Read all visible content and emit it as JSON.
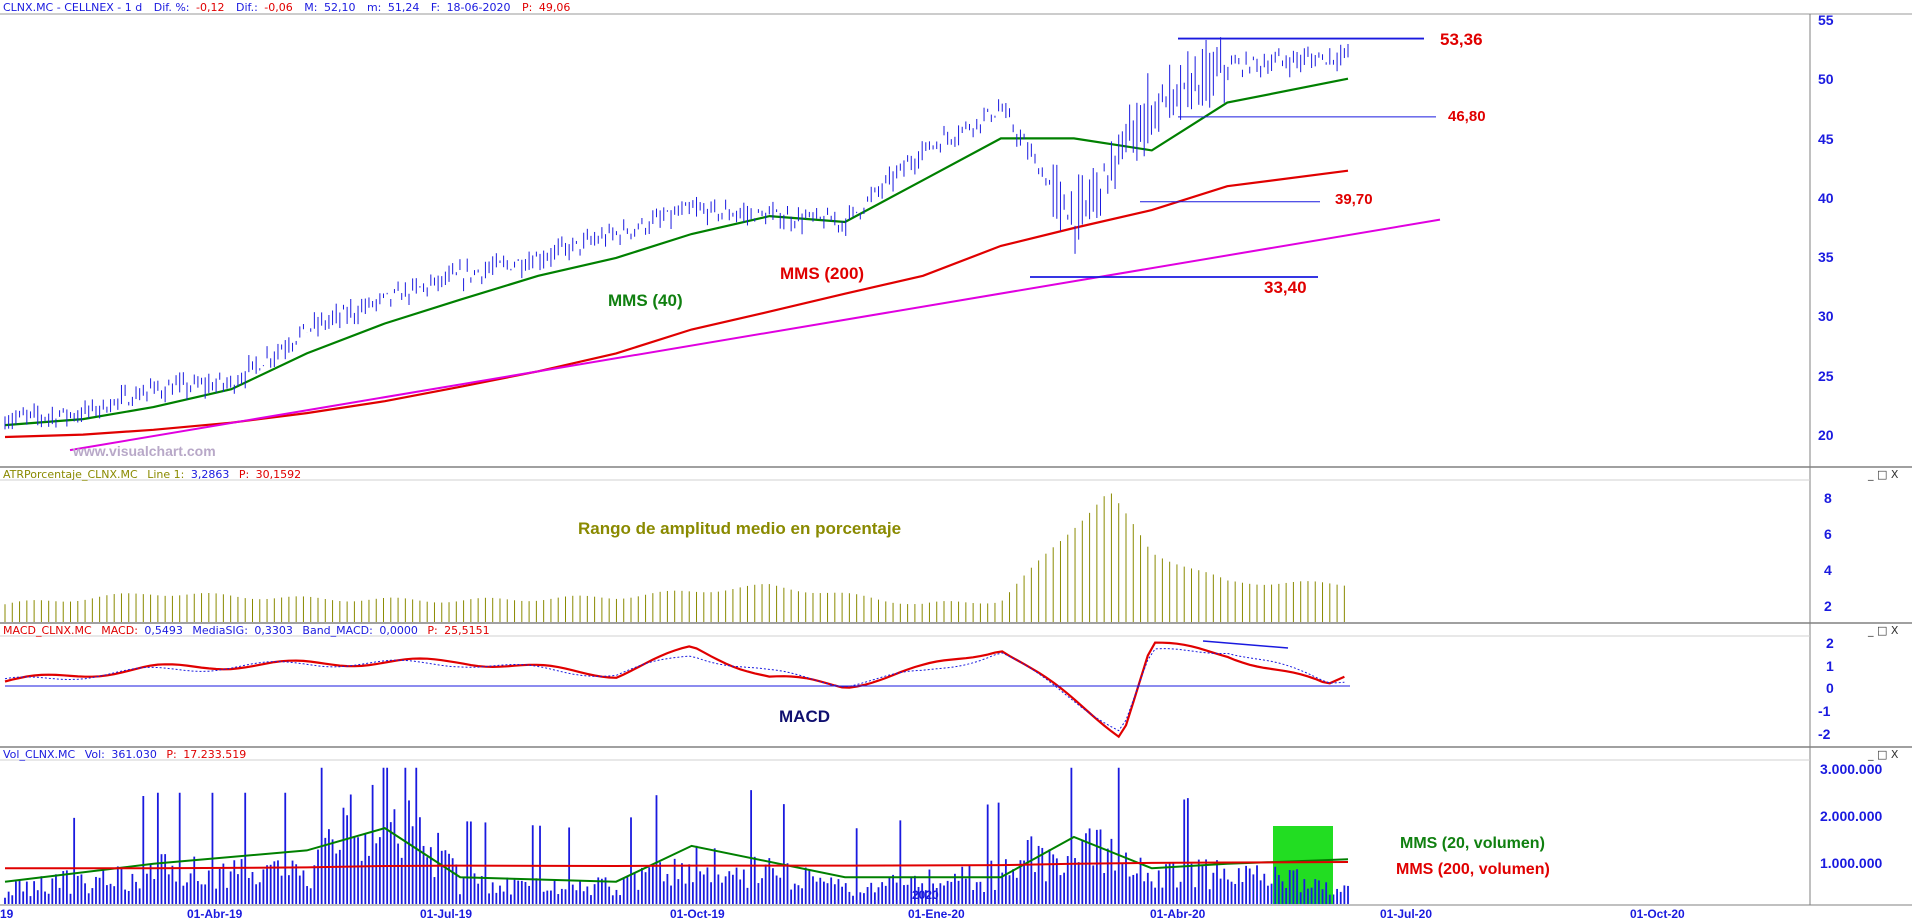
{
  "colors": {
    "price": "#1a1adf",
    "mms40": "#008000",
    "mms200": "#e00000",
    "trend": "#e000e0",
    "atr": "#8a8a00",
    "annotation_red": "#e00000",
    "annotation_green": "#108010",
    "annotation_blue": "#101070",
    "axis_blue": "#1a1adf",
    "highlight": "#22dd22"
  },
  "window_icons": "_ □ X",
  "panels": {
    "price": {
      "header": {
        "title": "CLNX.MC - CELLNEX - 1 d",
        "items": [
          {
            "label": "Dif. %:",
            "value": "-0,12"
          },
          {
            "label": "Dif.:",
            "value": "-0,06"
          },
          {
            "label": "M:",
            "value": "52,10"
          },
          {
            "label": "m:",
            "value": "51,24"
          },
          {
            "label": "F:",
            "value": "18-06-2020"
          },
          {
            "label": "P:",
            "value": "49,06"
          }
        ]
      },
      "watermark": "www.visualchart.com",
      "labels": {
        "mms40": "MMS (40)",
        "mms200": "MMS (200)"
      },
      "levels": [
        {
          "text": "53,36",
          "value": 53.36
        },
        {
          "text": "46,80",
          "value": 46.8
        },
        {
          "text": "39,70",
          "value": 39.7
        },
        {
          "text": "33,40",
          "value": 33.4
        }
      ],
      "yticks": [
        "55",
        "50",
        "45",
        "40",
        "35",
        "30",
        "25",
        "20"
      ]
    },
    "atr": {
      "header": {
        "title": "ATRPorcentaje_CLNX.MC",
        "line_label": "Line 1:",
        "line_value": "3,2863",
        "p_label": "P:",
        "p_value": "30,1592"
      },
      "annotation": "Rango de amplitud medio en porcentaje",
      "yticks": [
        "8",
        "6",
        "4",
        "2"
      ]
    },
    "macd": {
      "header": {
        "title": "MACD_CLNX.MC",
        "macd_label": "MACD:",
        "macd_value": "0,5493",
        "sig_label": "MediaSIG:",
        "sig_value": "0,3303",
        "band_label": "Band_MACD:",
        "band_value": "0,0000",
        "p_label": "P:",
        "p_value": "25,5151"
      },
      "annotation": "MACD",
      "yticks": [
        "2",
        "1",
        "0",
        "-1",
        "-2"
      ]
    },
    "volume": {
      "header": {
        "title": "Vol_CLNX.MC",
        "vol_label": "Vol:",
        "vol_value": "361.030",
        "p_label": "P:",
        "p_value": "17.233.519"
      },
      "labels": {
        "mms20": "MMS (20, volumen)",
        "mms200": "MMS (200, volumen)"
      },
      "year_marker": "2020",
      "yticks": [
        "3.000.000",
        "2.000.000",
        "1.000.000"
      ]
    }
  },
  "x_axis": {
    "labels": [
      "19",
      "01-Abr-19",
      "01-Jul-19",
      "01-Oct-19",
      "01-Ene-20",
      "01-Abr-20",
      "01-Jul-20",
      "01-Oct-20"
    ]
  },
  "chart_data": [
    {
      "type": "line",
      "title": "CLNX.MC - CELLNEX - 1 d",
      "x": [
        "2019-01",
        "2019-02",
        "2019-03",
        "2019-04",
        "2019-05",
        "2019-06",
        "2019-07",
        "2019-08",
        "2019-09",
        "2019-10",
        "2019-11",
        "2019-12",
        "2020-01",
        "2020-02",
        "2020-03",
        "2020-04",
        "2020-05",
        "2020-06-18"
      ],
      "series": [
        {
          "name": "Price",
          "values": [
            21.5,
            22.0,
            24.0,
            24.5,
            29.0,
            31.5,
            33.5,
            35.0,
            37.0,
            39.0,
            38.5,
            38.0,
            44.0,
            47.5,
            38.0,
            47.5,
            51.0,
            52.0
          ]
        },
        {
          "name": "MMS (40)",
          "values": [
            21.0,
            21.5,
            22.5,
            24.0,
            27.0,
            29.5,
            31.5,
            33.5,
            35.0,
            37.0,
            38.5,
            38.0,
            41.5,
            45.0,
            45.0,
            44.0,
            48.0,
            50.0
          ]
        },
        {
          "name": "MMS (200)",
          "values": [
            20.0,
            20.2,
            20.6,
            21.2,
            22.0,
            23.0,
            24.2,
            25.5,
            27.0,
            29.0,
            30.5,
            32.0,
            33.5,
            36.0,
            37.5,
            39.0,
            41.0,
            42.3
          ]
        }
      ],
      "ylim": [
        17,
        56
      ]
    },
    {
      "type": "bar",
      "title": "ATRPorcentaje_CLNX.MC",
      "x": [
        "2019-01",
        "2019-03",
        "2019-05",
        "2019-07",
        "2019-09",
        "2019-11",
        "2020-01",
        "2020-02",
        "2020-03-15",
        "2020-04",
        "2020-05",
        "2020-06-18"
      ],
      "values": [
        2.2,
        2.8,
        2.5,
        2.4,
        2.6,
        3.2,
        2.2,
        2.4,
        8.3,
        5.0,
        3.4,
        3.3
      ],
      "ylim": [
        1.5,
        8.5
      ]
    },
    {
      "type": "line",
      "title": "MACD_CLNX.MC",
      "x": [
        "2019-01",
        "2019-03",
        "2019-05",
        "2019-07",
        "2019-09",
        "2019-10",
        "2019-11",
        "2019-12",
        "2020-01",
        "2020-02",
        "2020-03-20",
        "2020-04",
        "2020-05",
        "2020-06-10",
        "2020-06-18"
      ],
      "series": [
        {
          "name": "MACD",
          "values": [
            0.2,
            0.8,
            1.0,
            1.1,
            0.5,
            1.7,
            0.4,
            0.0,
            0.8,
            1.7,
            -2.2,
            1.9,
            1.4,
            0.0,
            0.55
          ]
        },
        {
          "name": "MediaSIG",
          "values": [
            0.2,
            0.7,
            1.0,
            1.0,
            0.5,
            1.4,
            0.6,
            0.1,
            0.6,
            1.5,
            -2.0,
            1.5,
            1.6,
            0.2,
            0.33
          ]
        }
      ],
      "ylim": [
        -2.5,
        2.5
      ]
    },
    {
      "type": "bar",
      "title": "Vol_CLNX.MC",
      "x": [
        "2019-01",
        "2019-03",
        "2019-05",
        "2019-06",
        "2019-07",
        "2019-09",
        "2019-10",
        "2019-12",
        "2020-02",
        "2020-03",
        "2020-04",
        "2020-05",
        "2020-06-18"
      ],
      "values": [
        400000,
        900000,
        900000,
        2900000,
        600000,
        500000,
        1200000,
        500000,
        800000,
        1800000,
        700000,
        1000000,
        361030
      ],
      "series": [
        {
          "name": "MMS (20, volumen)",
          "values": [
            500000,
            900000,
            1200000,
            1700000,
            600000,
            500000,
            1300000,
            600000,
            600000,
            1500000,
            800000,
            900000,
            1000000
          ]
        },
        {
          "name": "MMS (200, volumen)",
          "values": [
            800000,
            800000,
            820000,
            850000,
            860000,
            850000,
            860000,
            860000,
            870000,
            900000,
            920000,
            930000,
            940000
          ]
        }
      ],
      "ylim": [
        0,
        3300000
      ]
    }
  ]
}
